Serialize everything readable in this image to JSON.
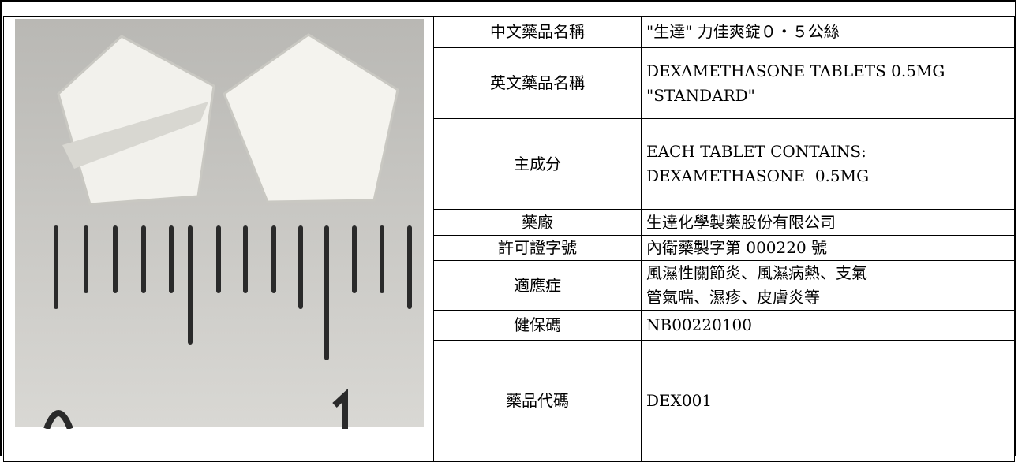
{
  "table": {
    "rows": [
      {
        "label": "中文藥品名稱",
        "lines": [
          "\"生達\" 力佳爽錠０‧５公絲"
        ]
      },
      {
        "label": "英文藥品名稱",
        "lines": [
          "DEXAMETHASONE TABLETS 0.5MG",
          "\"STANDARD\""
        ]
      },
      {
        "label": "主成分",
        "lines": [
          "EACH TABLET CONTAINS:",
          "DEXAMETHASONE  0.5MG"
        ]
      },
      {
        "label": "藥廠",
        "lines": [
          "生達化學製藥股份有限公司"
        ]
      },
      {
        "label": "許可證字號",
        "lines": [
          "內衛藥製字第 000220 號"
        ]
      },
      {
        "label": "適應症",
        "lines": [
          "風濕性關節炎、風濕病熱、支氣",
          "管氣喘、濕疹、皮膚炎等"
        ]
      },
      {
        "label": "健保碼",
        "lines": [
          "NB00220100"
        ]
      },
      {
        "label": "藥品代碼",
        "lines": [
          "DEX001"
        ]
      }
    ]
  }
}
